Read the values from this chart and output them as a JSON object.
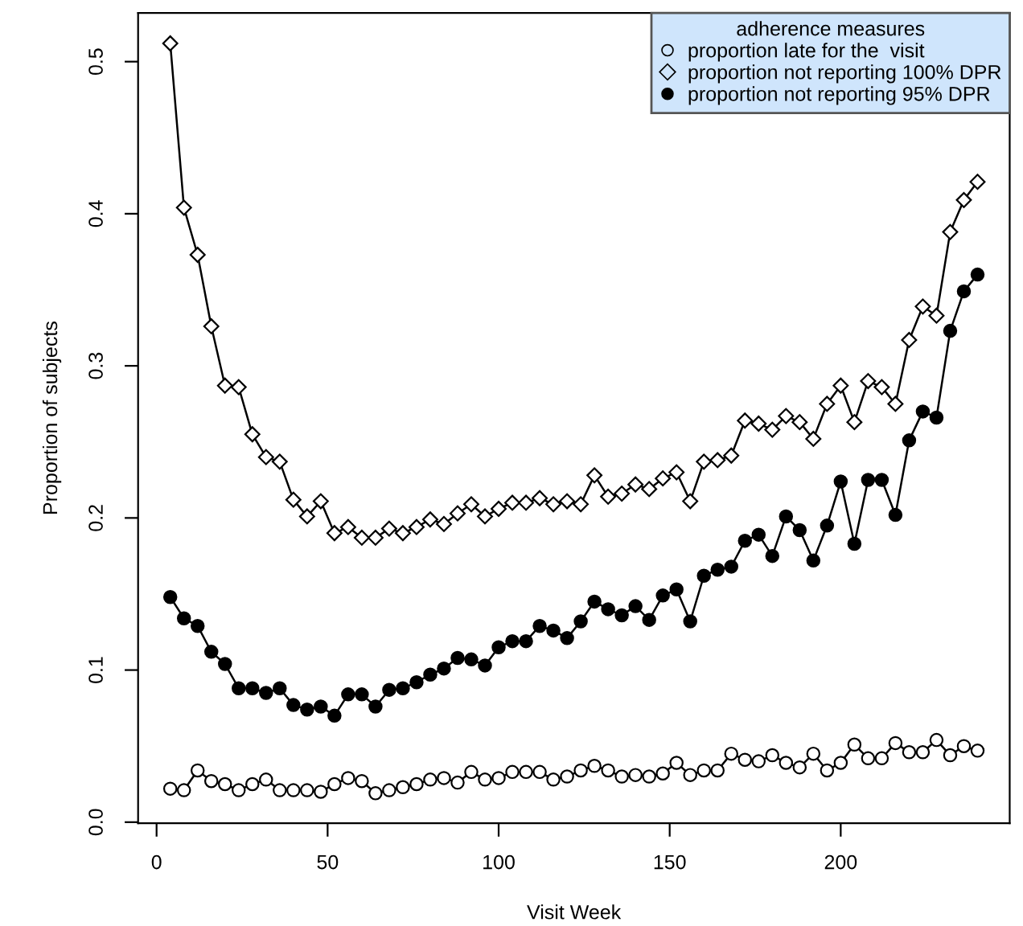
{
  "chart_data": {
    "type": "line",
    "xlabel": "Visit Week",
    "ylabel": "Proportion of subjects",
    "legend_title": "adherence measures",
    "x": [
      4,
      8,
      12,
      16,
      20,
      24,
      28,
      32,
      36,
      40,
      44,
      48,
      52,
      56,
      60,
      64,
      68,
      72,
      76,
      80,
      84,
      88,
      92,
      96,
      100,
      104,
      108,
      112,
      116,
      120,
      124,
      128,
      132,
      136,
      140,
      144,
      148,
      152,
      156,
      160,
      164,
      168,
      172,
      176,
      180,
      184,
      188,
      192,
      196,
      200,
      204,
      208,
      212,
      216,
      220,
      224,
      228,
      232,
      236,
      240
    ],
    "series": [
      {
        "name": "proportion late for the  visit",
        "color": "#000000",
        "marker": "circle",
        "values": [
          0.022,
          0.021,
          0.034,
          0.027,
          0.025,
          0.021,
          0.025,
          0.028,
          0.021,
          0.021,
          0.021,
          0.02,
          0.025,
          0.029,
          0.027,
          0.019,
          0.021,
          0.023,
          0.025,
          0.028,
          0.029,
          0.026,
          0.033,
          0.028,
          0.029,
          0.033,
          0.033,
          0.033,
          0.028,
          0.03,
          0.034,
          0.037,
          0.034,
          0.03,
          0.031,
          0.03,
          0.032,
          0.039,
          0.031,
          0.034,
          0.034,
          0.045,
          0.041,
          0.04,
          0.044,
          0.039,
          0.036,
          0.045,
          0.034,
          0.039,
          0.051,
          0.042,
          0.042,
          0.052,
          0.046,
          0.046,
          0.054,
          0.044,
          0.05,
          0.047
        ]
      },
      {
        "name": "proportion not reporting 100% DPR",
        "color": "#000000",
        "marker": "diamond",
        "values": [
          0.512,
          0.404,
          0.373,
          0.326,
          0.287,
          0.286,
          0.255,
          0.24,
          0.237,
          0.212,
          0.201,
          0.211,
          0.19,
          0.194,
          0.187,
          0.187,
          0.193,
          0.19,
          0.194,
          0.199,
          0.196,
          0.203,
          0.209,
          0.201,
          0.206,
          0.21,
          0.21,
          0.213,
          0.209,
          0.211,
          0.209,
          0.228,
          0.214,
          0.216,
          0.222,
          0.219,
          0.226,
          0.23,
          0.211,
          0.237,
          0.238,
          0.241,
          0.264,
          0.262,
          0.258,
          0.267,
          0.263,
          0.252,
          0.275,
          0.287,
          0.263,
          0.29,
          0.286,
          0.275,
          0.317,
          0.339,
          0.333,
          0.388,
          0.409,
          0.421
        ]
      },
      {
        "name": "proportion not reporting 95% DPR",
        "color": "#000000",
        "marker": "filled circle",
        "values": [
          0.148,
          0.134,
          0.129,
          0.112,
          0.104,
          0.088,
          0.088,
          0.085,
          0.088,
          0.077,
          0.074,
          0.076,
          0.07,
          0.084,
          0.084,
          0.076,
          0.087,
          0.088,
          0.092,
          0.097,
          0.101,
          0.108,
          0.107,
          0.103,
          0.115,
          0.119,
          0.119,
          0.129,
          0.126,
          0.121,
          0.132,
          0.145,
          0.14,
          0.136,
          0.142,
          0.133,
          0.149,
          0.153,
          0.132,
          0.162,
          0.166,
          0.168,
          0.185,
          0.189,
          0.175,
          0.201,
          0.192,
          0.172,
          0.195,
          0.224,
          0.183,
          0.225,
          0.225,
          0.202,
          0.251,
          0.27,
          0.266,
          0.323,
          0.349,
          0.36
        ]
      }
    ],
    "xlim": [
      -5.4,
      249.4
    ],
    "ylim": [
      -0.0007,
      0.532
    ],
    "xticks": [
      0,
      50,
      100,
      150,
      200
    ],
    "yticks": [
      {
        "value": 0,
        "label": "0.0"
      },
      0.1,
      0.2,
      0.3,
      0.4,
      0.5
    ],
    "legend": "top right",
    "line_style": "solid",
    "grid": false
  }
}
